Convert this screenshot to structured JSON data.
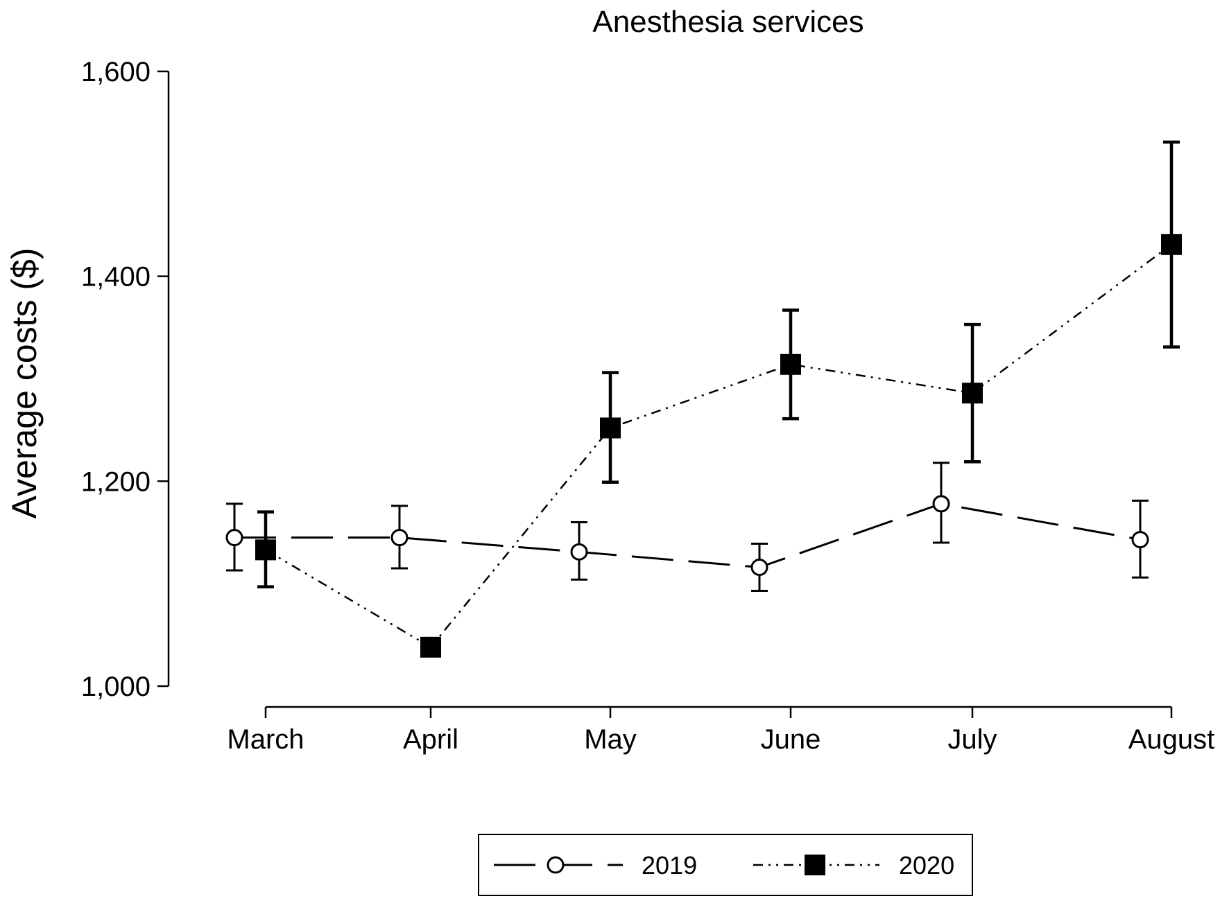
{
  "chart_data": {
    "type": "line",
    "title": "Anesthesia services",
    "xlabel": "",
    "ylabel": "Average costs  ($)",
    "categories": [
      "March",
      "April",
      "May",
      "June",
      "July",
      "August"
    ],
    "y_ticks": [
      "1,000",
      "1,200",
      "1,400",
      "1,600"
    ],
    "y_tick_values": [
      1000,
      1200,
      1400,
      1600
    ],
    "ylim": [
      1000,
      1600
    ],
    "grid": false,
    "legend_position": "bottom",
    "series": [
      {
        "name": "2019",
        "marker": "open-circle",
        "line_style": "long-dash",
        "color": "#000000",
        "values": [
          1145,
          1145,
          1131,
          1116,
          1178,
          1143
        ],
        "error_low": [
          1113,
          1115,
          1104,
          1093,
          1140,
          1106
        ],
        "error_high": [
          1178,
          1176,
          1160,
          1139,
          1218,
          1181
        ]
      },
      {
        "name": "2020",
        "marker": "filled-square",
        "line_style": "dash-dot-dot",
        "color": "#000000",
        "values": [
          1133,
          1038,
          1252,
          1314,
          1286,
          1431
        ],
        "error_low": [
          1097,
          null,
          1199,
          1261,
          1219,
          1331
        ],
        "error_high": [
          1170,
          null,
          1306,
          1367,
          1353,
          1531
        ]
      }
    ]
  }
}
